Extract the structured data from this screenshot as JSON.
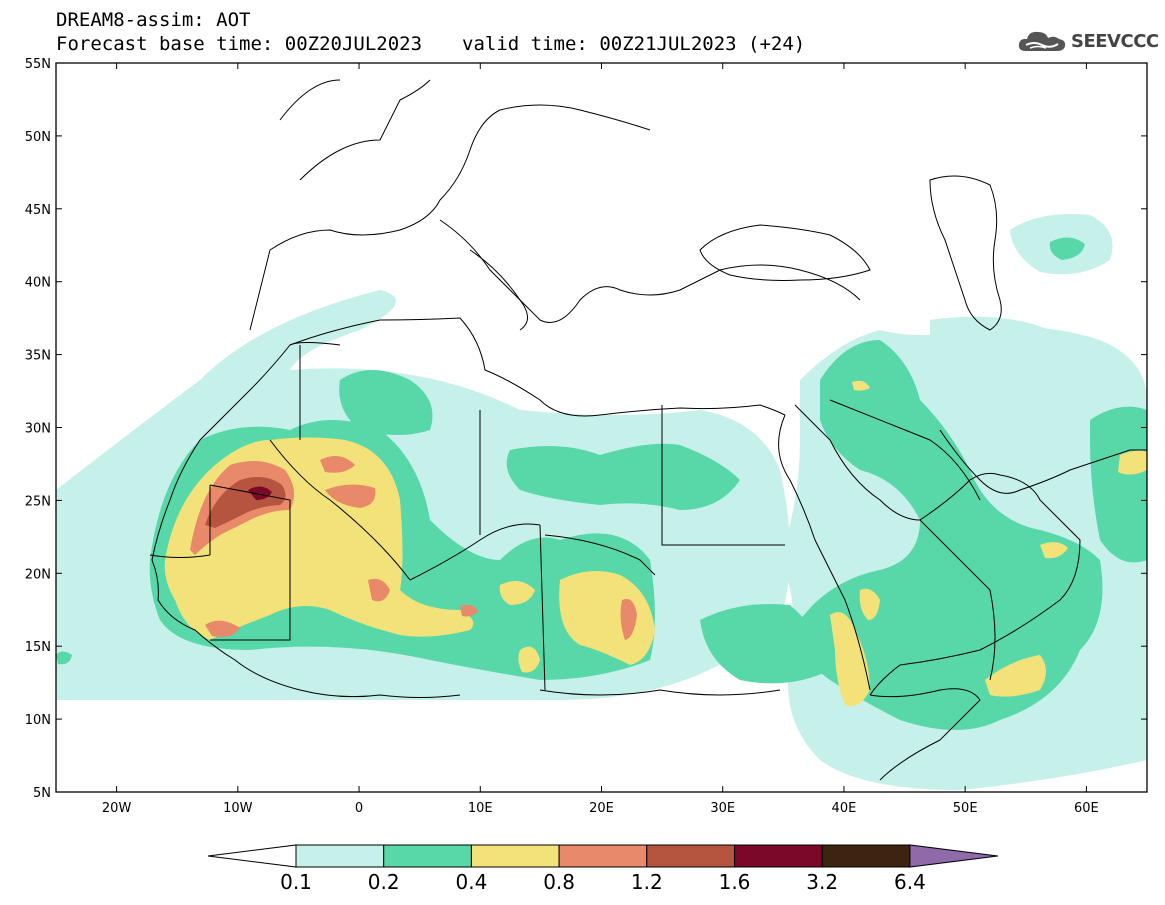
{
  "header": {
    "model_line": "DREAM8-assim: AOT",
    "base_time": "Forecast base time: 00Z20JUL2023",
    "valid_time": "valid time: 00Z21JUL2023 (+24)"
  },
  "logo": {
    "icon": "cloud-icon",
    "text": "SEEVCCC"
  },
  "axes": {
    "lat_labels": [
      "55N",
      "50N",
      "45N",
      "40N",
      "35N",
      "30N",
      "25N",
      "20N",
      "15N",
      "10N",
      "5N"
    ],
    "lon_labels": [
      "20W",
      "10W",
      "0",
      "10E",
      "20E",
      "30E",
      "40E",
      "50E",
      "60E"
    ],
    "lat_range": [
      5,
      55
    ],
    "lon_range": [
      -25,
      65
    ]
  },
  "colorbar": {
    "levels": [
      "0.1",
      "0.2",
      "0.4",
      "0.8",
      "1.2",
      "1.6",
      "3.2",
      "6.4"
    ],
    "colors": [
      "#c6f0ea",
      "#58d8a8",
      "#f3e27a",
      "#e8896a",
      "#b5553f",
      "#7a0826",
      "#3e2410",
      "#8e6aa8"
    ],
    "under_color": "#ffffff"
  }
}
